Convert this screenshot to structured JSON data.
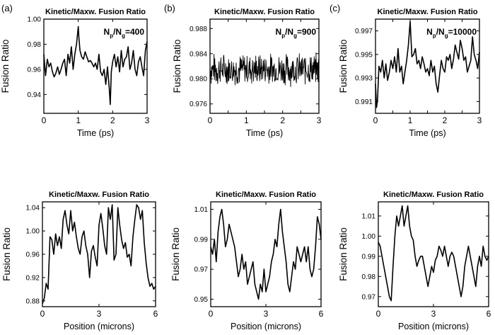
{
  "panel_labels": [
    "(a)",
    "(b)",
    "(c)"
  ],
  "colors": {
    "line": "#000000",
    "axis": "#000000",
    "background": "#ffffff"
  },
  "chart_data": [
    {
      "id": "top-a",
      "type": "line",
      "title": "Kinetic/Maxw. Fusion Ratio",
      "annotation": {
        "main": "N",
        "sub1": "p",
        "mid": "/N",
        "sub2": "g",
        "tail": "=400"
      },
      "xlabel": "Time (ps)",
      "ylabel": "Fusion Ratio",
      "xlim": [
        0,
        3
      ],
      "ylim": [
        0.925,
        1.0
      ],
      "xticks": [
        0,
        1,
        2,
        3
      ],
      "xtick_labels": [
        "0",
        "1",
        "2",
        "3"
      ],
      "yticks": [
        0.94,
        0.96,
        0.98,
        1.0
      ],
      "ytick_labels": [
        "0.94",
        "0.96",
        "0.98",
        "1.00"
      ],
      "x": [
        0,
        0.05,
        0.1,
        0.15,
        0.2,
        0.25,
        0.3,
        0.35,
        0.4,
        0.45,
        0.5,
        0.55,
        0.6,
        0.65,
        0.7,
        0.75,
        0.8,
        0.85,
        0.9,
        0.95,
        1.0,
        1.02,
        1.05,
        1.1,
        1.15,
        1.2,
        1.25,
        1.3,
        1.35,
        1.4,
        1.45,
        1.5,
        1.55,
        1.6,
        1.65,
        1.7,
        1.75,
        1.8,
        1.85,
        1.9,
        1.93,
        1.96,
        2.0,
        2.05,
        2.1,
        2.15,
        2.2,
        2.25,
        2.3,
        2.35,
        2.4,
        2.45,
        2.5,
        2.55,
        2.6,
        2.65,
        2.7,
        2.75,
        2.8,
        2.85,
        2.9,
        2.95,
        3.0
      ],
      "y": [
        0.972,
        0.955,
        0.968,
        0.962,
        0.965,
        0.958,
        0.954,
        0.957,
        0.962,
        0.956,
        0.96,
        0.965,
        0.968,
        0.955,
        0.972,
        0.965,
        0.978,
        0.96,
        0.972,
        0.98,
        0.994,
        0.985,
        0.975,
        0.97,
        0.968,
        0.974,
        0.97,
        0.966,
        0.967,
        0.965,
        0.962,
        0.965,
        0.96,
        0.972,
        0.958,
        0.955,
        0.96,
        0.948,
        0.962,
        0.945,
        0.932,
        0.958,
        0.966,
        0.972,
        0.962,
        0.97,
        0.958,
        0.975,
        0.962,
        0.968,
        0.97,
        0.978,
        0.96,
        0.965,
        0.975,
        0.96,
        0.955,
        0.966,
        0.97,
        0.962,
        0.955,
        0.975,
        0.982
      ]
    },
    {
      "id": "top-b",
      "type": "line",
      "title": "Kinetic/Maxw. Fusion Ratio",
      "annotation": {
        "main": "N",
        "sub1": "p",
        "mid": "/N",
        "sub2": "g",
        "tail": "=900"
      },
      "xlabel": "Time (ps)",
      "ylabel": "Fusion Ratio",
      "xlim": [
        0,
        3
      ],
      "ylim": [
        0.9745,
        0.9895
      ],
      "xticks": [
        0,
        0.5,
        1,
        1.5,
        2,
        2.5,
        3
      ],
      "xtick_labels": [
        "0",
        "",
        "1",
        "",
        "2",
        "",
        "3"
      ],
      "yticks": [
        0.976,
        0.98,
        0.984,
        0.988
      ],
      "ytick_labels": [
        "0.976",
        "0.980",
        "0.984",
        "0.988"
      ],
      "noise": {
        "points": 300,
        "center": 0.9815,
        "amplitude": 0.0028,
        "seed": 7
      }
    },
    {
      "id": "top-c",
      "type": "line",
      "title": "Kinetic/Maxw. Fusion Ratio",
      "annotation": {
        "main": "N",
        "sub1": "p",
        "mid": "/N",
        "sub2": "g",
        "tail": "=10000"
      },
      "xlabel": "Time (ps)",
      "ylabel": "Fusion Ratio",
      "xlim": [
        0,
        3
      ],
      "ylim": [
        0.99,
        0.998
      ],
      "xticks": [
        0,
        0.5,
        1,
        1.5,
        2,
        2.5,
        3
      ],
      "xtick_labels": [
        "0",
        "",
        "1",
        "",
        "2",
        "",
        "3"
      ],
      "yticks": [
        0.991,
        0.993,
        0.995,
        0.997
      ],
      "ytick_labels": [
        "0.991",
        "0.993",
        "0.995",
        "0.997"
      ],
      "x": [
        0,
        0.03,
        0.06,
        0.1,
        0.15,
        0.2,
        0.25,
        0.3,
        0.35,
        0.4,
        0.45,
        0.5,
        0.55,
        0.6,
        0.65,
        0.7,
        0.75,
        0.8,
        0.85,
        0.9,
        0.95,
        1.0,
        1.05,
        1.1,
        1.15,
        1.2,
        1.25,
        1.3,
        1.35,
        1.4,
        1.45,
        1.5,
        1.55,
        1.6,
        1.65,
        1.7,
        1.75,
        1.8,
        1.85,
        1.9,
        1.95,
        2.0,
        2.05,
        2.1,
        2.15,
        2.2,
        2.25,
        2.3,
        2.35,
        2.4,
        2.45,
        2.5,
        2.55,
        2.6,
        2.65,
        2.7,
        2.75,
        2.8,
        2.85,
        2.9,
        2.95,
        3.0
      ],
      "y": [
        0.9925,
        0.9905,
        0.9912,
        0.994,
        0.9935,
        0.9945,
        0.993,
        0.9942,
        0.9928,
        0.9935,
        0.9945,
        0.9938,
        0.9948,
        0.9935,
        0.9955,
        0.9935,
        0.994,
        0.9925,
        0.9935,
        0.9945,
        0.9958,
        0.9978,
        0.9948,
        0.995,
        0.9955,
        0.9942,
        0.9945,
        0.9938,
        0.9948,
        0.9942,
        0.9935,
        0.9938,
        0.9932,
        0.9945,
        0.9935,
        0.994,
        0.9925,
        0.9918,
        0.9932,
        0.9945,
        0.9938,
        0.9935,
        0.9948,
        0.9945,
        0.995,
        0.9938,
        0.9946,
        0.9958,
        0.9952,
        0.9946,
        0.9962,
        0.9955,
        0.9945,
        0.9948,
        0.9935,
        0.994,
        0.9945,
        0.9965,
        0.995,
        0.9945,
        0.9938,
        0.9952
      ]
    },
    {
      "id": "bottom-a",
      "type": "line",
      "title": "Kinetic/Maxw. Fusion Ratio",
      "xlabel": "Position (microns)",
      "ylabel": "Fusion Ratio",
      "xlim": [
        0,
        6
      ],
      "ylim": [
        0.87,
        1.05
      ],
      "xticks": [
        0,
        3,
        6
      ],
      "xtick_labels": [
        "0",
        "3",
        "6"
      ],
      "yticks": [
        0.88,
        0.92,
        0.96,
        1.0,
        1.04
      ],
      "ytick_labels": [
        "0.88",
        "0.92",
        "0.96",
        "1.00",
        "1.04"
      ],
      "x": [
        0,
        0.1,
        0.2,
        0.3,
        0.4,
        0.5,
        0.6,
        0.7,
        0.8,
        0.9,
        1.0,
        1.1,
        1.2,
        1.3,
        1.4,
        1.5,
        1.6,
        1.7,
        1.8,
        1.9,
        2.0,
        2.1,
        2.2,
        2.3,
        2.4,
        2.5,
        2.6,
        2.7,
        2.8,
        2.9,
        3.0,
        3.1,
        3.2,
        3.3,
        3.4,
        3.5,
        3.6,
        3.7,
        3.8,
        3.9,
        4.0,
        4.1,
        4.2,
        4.3,
        4.4,
        4.5,
        4.6,
        4.7,
        4.8,
        4.9,
        5.0,
        5.1,
        5.2,
        5.3,
        5.4,
        5.5,
        5.6,
        5.7,
        5.8,
        5.9,
        6.0
      ],
      "y": [
        0.875,
        0.885,
        0.91,
        0.9,
        0.99,
        0.985,
        0.96,
        0.995,
        0.975,
        0.99,
        0.97,
        1.02,
        1.035,
        1.01,
        0.995,
        1.035,
        1.0,
        1.015,
        0.99,
        0.97,
        0.96,
        0.99,
        1.0,
        0.975,
        0.96,
        0.92,
        0.965,
        0.975,
        0.955,
        0.94,
        1.01,
        1.03,
        1.005,
        0.975,
        0.96,
        1.04,
        1.02,
        1.045,
        0.95,
        0.96,
        1.04,
        1.01,
        0.985,
        0.97,
        0.98,
        0.955,
        0.96,
        0.94,
        0.99,
        1.02,
        1.045,
        1.04,
        1.02,
        1.035,
        0.98,
        0.945,
        0.92,
        0.905,
        0.91,
        0.9,
        0.905
      ]
    },
    {
      "id": "bottom-b",
      "type": "line",
      "title": "Kinetic/Maxw. Fusion Ratio",
      "xlabel": "Position (microns)",
      "ylabel": "Fusion Ratio",
      "xlim": [
        0,
        6
      ],
      "ylim": [
        0.945,
        1.015
      ],
      "xticks": [
        0,
        3,
        6
      ],
      "xtick_labels": [
        "0",
        "3",
        "6"
      ],
      "yticks": [
        0.95,
        0.97,
        0.99,
        1.01
      ],
      "ytick_labels": [
        "0.95",
        "0.97",
        "0.99",
        "1.01"
      ],
      "x": [
        0,
        0.1,
        0.2,
        0.3,
        0.4,
        0.5,
        0.6,
        0.7,
        0.8,
        0.9,
        1.0,
        1.1,
        1.2,
        1.3,
        1.4,
        1.5,
        1.6,
        1.7,
        1.8,
        1.9,
        2.0,
        2.1,
        2.2,
        2.3,
        2.4,
        2.5,
        2.6,
        2.7,
        2.8,
        2.9,
        3.0,
        3.1,
        3.2,
        3.3,
        3.4,
        3.5,
        3.6,
        3.7,
        3.8,
        3.9,
        4.0,
        4.1,
        4.2,
        4.3,
        4.4,
        4.5,
        4.6,
        4.7,
        4.8,
        4.9,
        5.0,
        5.1,
        5.2,
        5.3,
        5.4,
        5.5,
        5.6,
        5.7,
        5.8,
        5.9,
        6.0
      ],
      "y": [
        0.985,
        0.98,
        0.99,
        0.975,
        0.995,
        1.005,
        1.01,
        1.0,
        0.985,
        0.99,
        1.0,
        0.995,
        0.99,
        0.985,
        0.975,
        0.965,
        0.97,
        0.98,
        0.97,
        0.975,
        0.96,
        0.965,
        0.97,
        0.975,
        0.96,
        0.955,
        0.95,
        0.96,
        0.955,
        0.97,
        0.955,
        0.96,
        0.965,
        0.975,
        0.98,
        0.99,
        0.985,
        1.0,
        1.01,
        0.995,
        0.985,
        0.975,
        0.96,
        0.955,
        0.965,
        0.975,
        0.97,
        0.985,
        0.98,
        0.975,
        0.98,
        0.985,
        0.975,
        0.985,
        0.97,
        0.965,
        0.97,
        0.985,
        1.005,
        1.0,
        0.99
      ]
    },
    {
      "id": "bottom-c",
      "type": "line",
      "title": "Kinetic/Maxw. Fusion Ratio",
      "xlabel": "Position (microns)",
      "ylabel": "Fusion Ratio",
      "xlim": [
        0,
        6
      ],
      "ylim": [
        0.965,
        1.017
      ],
      "xticks": [
        0,
        3,
        6
      ],
      "xtick_labels": [
        "0",
        "3",
        "6"
      ],
      "yticks": [
        0.97,
        0.98,
        0.99,
        1.0,
        1.01
      ],
      "ytick_labels": [
        "0.97",
        "0.98",
        "0.99",
        "1.00",
        "1.01"
      ],
      "x": [
        0,
        0.1,
        0.2,
        0.3,
        0.4,
        0.5,
        0.6,
        0.7,
        0.8,
        0.9,
        1.0,
        1.1,
        1.2,
        1.3,
        1.4,
        1.5,
        1.6,
        1.7,
        1.8,
        1.9,
        2.0,
        2.1,
        2.2,
        2.3,
        2.4,
        2.5,
        2.6,
        2.7,
        2.8,
        2.9,
        3.0,
        3.1,
        3.2,
        3.3,
        3.4,
        3.5,
        3.6,
        3.7,
        3.8,
        3.9,
        4.0,
        4.1,
        4.2,
        4.3,
        4.4,
        4.5,
        4.6,
        4.7,
        4.8,
        4.9,
        5.0,
        5.1,
        5.2,
        5.3,
        5.4,
        5.5,
        5.6,
        5.7,
        5.8,
        5.9,
        6.0
      ],
      "y": [
        0.997,
        0.995,
        0.99,
        0.985,
        0.98,
        0.975,
        0.97,
        0.968,
        0.985,
        1.0,
        1.01,
        1.005,
        1.01,
        1.015,
        1.005,
        1.01,
        1.015,
        1.005,
        1.0,
        0.998,
        0.99,
        0.985,
        0.988,
        0.99,
        0.99,
        0.985,
        0.98,
        0.975,
        0.98,
        0.985,
        0.982,
        0.988,
        0.99,
        0.995,
        0.993,
        0.99,
        0.995,
        0.99,
        0.985,
        0.99,
        0.992,
        0.99,
        0.985,
        0.98,
        0.975,
        0.97,
        0.975,
        0.985,
        0.99,
        0.995,
        0.99,
        0.985,
        0.98,
        0.975,
        0.985,
        0.99,
        0.985,
        0.995,
        0.99,
        0.988,
        0.99
      ]
    }
  ]
}
